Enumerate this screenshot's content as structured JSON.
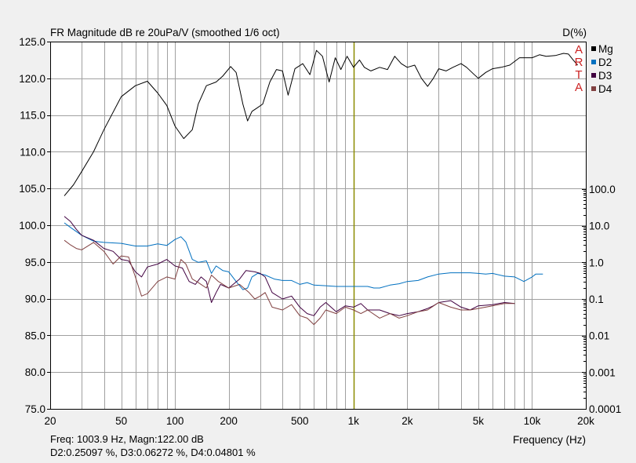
{
  "chart_data": {
    "type": "line",
    "title": "FR Magnitude dB re 20uPa/V (smoothed 1/6 oct)",
    "right_axis_title": "D(%)",
    "xlabel": "Frequency (Hz)",
    "x_scale": "log",
    "xlim": [
      20,
      20000
    ],
    "x_ticks": [
      {
        "value": 20,
        "label": "20"
      },
      {
        "value": 50,
        "label": "50"
      },
      {
        "value": 100,
        "label": "100"
      },
      {
        "value": 200,
        "label": "200"
      },
      {
        "value": 500,
        "label": "500"
      },
      {
        "value": 1000,
        "label": "1k"
      },
      {
        "value": 2000,
        "label": "2k"
      },
      {
        "value": 5000,
        "label": "5k"
      },
      {
        "value": 10000,
        "label": "10k"
      },
      {
        "value": 20000,
        "label": "20k"
      }
    ],
    "ylim": [
      75,
      125
    ],
    "y_ticks": [
      "125.0",
      "120.0",
      "115.0",
      "110.0",
      "105.0",
      "100.0",
      "95.0",
      "90.0",
      "85.0",
      "80.0",
      "75.0"
    ],
    "y2_scale": "log",
    "y2lim": [
      0.0001,
      100
    ],
    "y2_ticks": [
      "100.0",
      "10.0",
      "1.0",
      "0.1",
      "0.01",
      "0.001",
      "0.0001"
    ],
    "grid": true,
    "legend_position": "top-right",
    "cursor_frequency": 1003.9,
    "series": [
      {
        "name": "Mg",
        "axis": "left",
        "color": "#000000",
        "points": [
          [
            24,
            104.0
          ],
          [
            27,
            105.5
          ],
          [
            30,
            107.3
          ],
          [
            35,
            110.0
          ],
          [
            40,
            113.0
          ],
          [
            50,
            117.5
          ],
          [
            60,
            119.0
          ],
          [
            70,
            119.6
          ],
          [
            80,
            118.0
          ],
          [
            90,
            116.3
          ],
          [
            100,
            113.5
          ],
          [
            112,
            111.8
          ],
          [
            125,
            113.0
          ],
          [
            135,
            116.5
          ],
          [
            150,
            119.0
          ],
          [
            170,
            119.5
          ],
          [
            185,
            120.3
          ],
          [
            205,
            121.6
          ],
          [
            220,
            120.8
          ],
          [
            240,
            116.5
          ],
          [
            255,
            114.2
          ],
          [
            270,
            115.5
          ],
          [
            290,
            116.0
          ],
          [
            310,
            116.5
          ],
          [
            340,
            119.5
          ],
          [
            370,
            121.2
          ],
          [
            400,
            121.0
          ],
          [
            430,
            117.7
          ],
          [
            470,
            121.3
          ],
          [
            520,
            122.0
          ],
          [
            570,
            120.5
          ],
          [
            620,
            123.8
          ],
          [
            670,
            123.0
          ],
          [
            730,
            119.5
          ],
          [
            790,
            122.8
          ],
          [
            850,
            121.2
          ],
          [
            920,
            123.0
          ],
          [
            1000,
            121.5
          ],
          [
            1080,
            122.5
          ],
          [
            1150,
            121.5
          ],
          [
            1250,
            121.0
          ],
          [
            1400,
            121.5
          ],
          [
            1550,
            121.2
          ],
          [
            1700,
            123.0
          ],
          [
            1850,
            122.0
          ],
          [
            2000,
            121.5
          ],
          [
            2200,
            121.8
          ],
          [
            2400,
            120.0
          ],
          [
            2600,
            118.9
          ],
          [
            2800,
            120.0
          ],
          [
            3000,
            121.3
          ],
          [
            3300,
            121.0
          ],
          [
            3600,
            121.5
          ],
          [
            4000,
            122.0
          ],
          [
            4300,
            121.5
          ],
          [
            4700,
            120.6
          ],
          [
            5000,
            120.0
          ],
          [
            5500,
            120.8
          ],
          [
            6000,
            121.3
          ],
          [
            6700,
            121.5
          ],
          [
            7500,
            121.8
          ],
          [
            8500,
            122.8
          ],
          [
            10000,
            122.8
          ],
          [
            11000,
            123.2
          ],
          [
            12000,
            123.0
          ],
          [
            13500,
            123.1
          ],
          [
            15000,
            123.4
          ],
          [
            16000,
            123.3
          ],
          [
            17000,
            122.5
          ],
          [
            18000,
            121.8
          ]
        ]
      },
      {
        "name": "D2",
        "axis": "right",
        "color": "#0070c0",
        "points": [
          [
            24,
            12
          ],
          [
            26,
            9
          ],
          [
            30,
            5.5
          ],
          [
            35,
            3.8
          ],
          [
            40,
            3.5
          ],
          [
            50,
            3.3
          ],
          [
            60,
            2.8
          ],
          [
            70,
            2.8
          ],
          [
            80,
            3.2
          ],
          [
            90,
            2.9
          ],
          [
            100,
            4.2
          ],
          [
            108,
            5.0
          ],
          [
            115,
            3.6
          ],
          [
            125,
            1.2
          ],
          [
            135,
            1.0
          ],
          [
            150,
            1.1
          ],
          [
            160,
            0.5
          ],
          [
            170,
            0.8
          ],
          [
            185,
            0.6
          ],
          [
            200,
            0.55
          ],
          [
            220,
            0.3
          ],
          [
            240,
            0.18
          ],
          [
            255,
            0.2
          ],
          [
            270,
            0.4
          ],
          [
            290,
            0.5
          ],
          [
            320,
            0.45
          ],
          [
            360,
            0.35
          ],
          [
            400,
            0.32
          ],
          [
            450,
            0.32
          ],
          [
            500,
            0.25
          ],
          [
            550,
            0.28
          ],
          [
            600,
            0.24
          ],
          [
            700,
            0.23
          ],
          [
            800,
            0.22
          ],
          [
            900,
            0.22
          ],
          [
            1000,
            0.22
          ],
          [
            1200,
            0.22
          ],
          [
            1300,
            0.2
          ],
          [
            1400,
            0.2
          ],
          [
            1600,
            0.24
          ],
          [
            1800,
            0.26
          ],
          [
            2000,
            0.3
          ],
          [
            2300,
            0.32
          ],
          [
            2600,
            0.4
          ],
          [
            3000,
            0.48
          ],
          [
            3500,
            0.52
          ],
          [
            4000,
            0.52
          ],
          [
            4500,
            0.52
          ],
          [
            5000,
            0.5
          ],
          [
            5500,
            0.48
          ],
          [
            6000,
            0.5
          ],
          [
            7000,
            0.42
          ],
          [
            8000,
            0.4
          ],
          [
            9000,
            0.3
          ],
          [
            10000,
            0.4
          ],
          [
            10500,
            0.48
          ],
          [
            11500,
            0.48
          ]
        ]
      },
      {
        "name": "D3",
        "axis": "right",
        "color": "#400040",
        "points": [
          [
            24,
            18
          ],
          [
            26,
            13
          ],
          [
            28,
            8
          ],
          [
            30,
            5.5
          ],
          [
            35,
            4
          ],
          [
            40,
            2.4
          ],
          [
            45,
            2
          ],
          [
            50,
            1.2
          ],
          [
            55,
            1.1
          ],
          [
            60,
            0.55
          ],
          [
            65,
            0.4
          ],
          [
            70,
            0.75
          ],
          [
            80,
            0.9
          ],
          [
            90,
            1.2
          ],
          [
            100,
            0.8
          ],
          [
            110,
            0.7
          ],
          [
            120,
            0.3
          ],
          [
            130,
            0.25
          ],
          [
            140,
            0.4
          ],
          [
            150,
            0.3
          ],
          [
            160,
            0.08
          ],
          [
            170,
            0.15
          ],
          [
            180,
            0.25
          ],
          [
            200,
            0.2
          ],
          [
            230,
            0.35
          ],
          [
            250,
            0.6
          ],
          [
            280,
            0.55
          ],
          [
            300,
            0.5
          ],
          [
            320,
            0.4
          ],
          [
            350,
            0.15
          ],
          [
            400,
            0.1
          ],
          [
            450,
            0.12
          ],
          [
            500,
            0.06
          ],
          [
            550,
            0.04
          ],
          [
            600,
            0.035
          ],
          [
            650,
            0.06
          ],
          [
            700,
            0.08
          ],
          [
            800,
            0.045
          ],
          [
            900,
            0.065
          ],
          [
            1000,
            0.06
          ],
          [
            1100,
            0.075
          ],
          [
            1200,
            0.05
          ],
          [
            1400,
            0.05
          ],
          [
            1600,
            0.04
          ],
          [
            1800,
            0.035
          ],
          [
            2000,
            0.04
          ],
          [
            2300,
            0.045
          ],
          [
            2600,
            0.055
          ],
          [
            2800,
            0.065
          ],
          [
            3000,
            0.08
          ],
          [
            3500,
            0.09
          ],
          [
            4000,
            0.06
          ],
          [
            4500,
            0.05
          ],
          [
            5000,
            0.065
          ],
          [
            6000,
            0.07
          ],
          [
            7000,
            0.08
          ],
          [
            8000,
            0.075
          ]
        ]
      },
      {
        "name": "D4",
        "axis": "right",
        "color": "#804040",
        "points": [
          [
            24,
            4
          ],
          [
            26,
            3
          ],
          [
            28,
            2.4
          ],
          [
            30,
            2.2
          ],
          [
            35,
            3.5
          ],
          [
            40,
            2.0
          ],
          [
            45,
            0.9
          ],
          [
            50,
            1.5
          ],
          [
            55,
            1.4
          ],
          [
            60,
            0.4
          ],
          [
            65,
            0.12
          ],
          [
            70,
            0.14
          ],
          [
            80,
            0.3
          ],
          [
            90,
            0.4
          ],
          [
            100,
            0.35
          ],
          [
            108,
            1.2
          ],
          [
            115,
            0.9
          ],
          [
            125,
            0.35
          ],
          [
            135,
            0.28
          ],
          [
            150,
            0.2
          ],
          [
            160,
            0.45
          ],
          [
            175,
            0.3
          ],
          [
            200,
            0.2
          ],
          [
            230,
            0.25
          ],
          [
            260,
            0.15
          ],
          [
            280,
            0.1
          ],
          [
            300,
            0.12
          ],
          [
            320,
            0.15
          ],
          [
            350,
            0.06
          ],
          [
            400,
            0.05
          ],
          [
            450,
            0.07
          ],
          [
            500,
            0.035
          ],
          [
            550,
            0.03
          ],
          [
            600,
            0.02
          ],
          [
            650,
            0.03
          ],
          [
            700,
            0.05
          ],
          [
            800,
            0.04
          ],
          [
            900,
            0.06
          ],
          [
            1000,
            0.05
          ],
          [
            1100,
            0.04
          ],
          [
            1200,
            0.05
          ],
          [
            1400,
            0.03
          ],
          [
            1600,
            0.04
          ],
          [
            1800,
            0.03
          ],
          [
            2000,
            0.035
          ],
          [
            2300,
            0.045
          ],
          [
            2600,
            0.05
          ],
          [
            3000,
            0.08
          ],
          [
            3500,
            0.06
          ],
          [
            4000,
            0.05
          ],
          [
            4500,
            0.05
          ],
          [
            5000,
            0.055
          ],
          [
            6000,
            0.065
          ],
          [
            7000,
            0.075
          ],
          [
            8000,
            0.075
          ]
        ]
      }
    ],
    "legend": [
      {
        "label": "Mg",
        "color": "#000000"
      },
      {
        "label": "D2",
        "color": "#0070c0"
      },
      {
        "label": "D3",
        "color": "#400040"
      },
      {
        "label": "D4",
        "color": "#804040"
      }
    ],
    "watermark": [
      "A",
      "R",
      "T",
      "A"
    ]
  },
  "status": {
    "line1": "Freq: 1003.9 Hz, Magn:122.00 dB",
    "line2": "D2:0.25097 %, D3:0.06272 %, D4:0.04801 %"
  },
  "colors": {
    "background": "#f0f0f0",
    "plot_background": "#ffffff",
    "grid": "#a0a0a0",
    "cursor": "#8b8b00",
    "watermark": "#cc2222"
  }
}
